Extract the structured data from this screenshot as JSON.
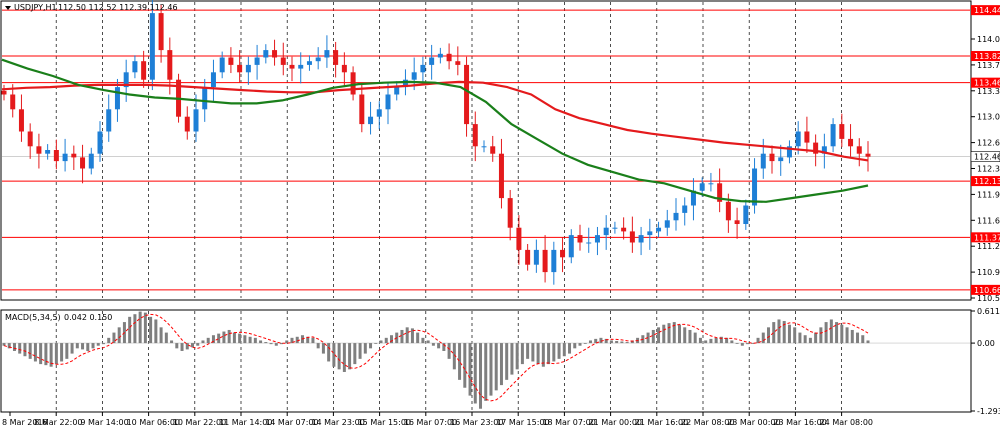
{
  "header": {
    "symbol_label": "USDJPY,H1",
    "ohlc_label": "112.50 112.52 112.39 112.46"
  },
  "macd_header": {
    "label": "MACD(5,34,5)",
    "values_label": "0.042 0.150"
  },
  "chart_data": [
    {
      "type": "candlestick",
      "title": "USDJPY,H1",
      "ylim": [
        110.55,
        114.55
      ],
      "price_ticks": [
        "114.05",
        "113.70",
        "113.35",
        "113.00",
        "112.65",
        "112.30",
        "111.95",
        "111.60",
        "111.25",
        "110.90",
        "110.55"
      ],
      "price_tick_values": [
        114.05,
        113.7,
        113.35,
        113.0,
        112.65,
        112.3,
        111.95,
        111.6,
        111.25,
        110.9,
        110.55
      ],
      "horizontal_levels": [
        114.44,
        113.82,
        113.46,
        112.13,
        111.37,
        110.66
      ],
      "horizontal_level_labels": [
        "114.44",
        "113.82",
        "113.46",
        "112.13",
        "111.37",
        "110.66"
      ],
      "current_price": 112.46,
      "current_price_label": "112.46",
      "x_labels": [
        "8 Mar 2016",
        "8 Mar 22:00",
        "9 Mar 14:00",
        "10 Mar 06:00",
        "10 Mar 22:00",
        "11 Mar 14:00",
        "14 Mar 07:00",
        "14 Mar 23:00",
        "15 Mar 15:00",
        "16 Mar 07:00",
        "16 Mar 23:00",
        "17 Mar 15:00",
        "18 Mar 07:00",
        "21 Mar 00:00",
        "21 Mar 16:00",
        "22 Mar 08:00",
        "23 Mar 00:00",
        "23 Mar 16:00",
        "24 Mar 08:00"
      ],
      "close_series": [
        113.3,
        113.1,
        112.8,
        112.6,
        112.5,
        112.55,
        112.4,
        112.5,
        112.45,
        112.3,
        112.5,
        112.8,
        113.1,
        113.4,
        113.6,
        113.75,
        113.5,
        114.4,
        113.9,
        113.5,
        113.0,
        112.8,
        113.1,
        113.4,
        113.6,
        113.8,
        113.7,
        113.6,
        113.7,
        113.8,
        113.9,
        113.8,
        113.7,
        113.65,
        113.7,
        113.75,
        113.8,
        113.9,
        113.7,
        113.6,
        113.3,
        112.9,
        113.0,
        113.1,
        113.3,
        113.4,
        113.5,
        113.6,
        113.7,
        113.8,
        113.85,
        113.75,
        113.7,
        112.9,
        112.6,
        112.6,
        112.5,
        111.9,
        111.5,
        111.2,
        111.0,
        111.2,
        110.9,
        111.2,
        111.1,
        111.4,
        111.3,
        111.3,
        111.4,
        111.5,
        111.5,
        111.45,
        111.3,
        111.4,
        111.45,
        111.5,
        111.6,
        111.7,
        111.8,
        112.0,
        112.1,
        112.1,
        111.85,
        111.6,
        111.55,
        111.8,
        112.3,
        112.5,
        112.4,
        112.45,
        112.6,
        112.8,
        112.65,
        112.5,
        112.6,
        112.9,
        112.7,
        112.6,
        112.5,
        112.46
      ],
      "ma_series": [
        {
          "name": "",
          "color": "#e41a1c",
          "values": [
            113.37,
            113.39,
            113.4,
            113.42,
            113.43,
            113.43,
            113.43,
            113.42,
            113.4,
            113.38,
            113.36,
            113.34,
            113.33,
            113.33,
            113.36,
            113.38,
            113.4,
            113.42,
            113.45,
            113.47,
            113.46,
            113.4,
            113.3,
            113.1,
            112.98,
            112.9,
            112.82,
            112.77,
            112.73,
            112.69,
            112.65,
            112.62,
            112.59,
            112.56,
            112.53,
            112.46,
            112.41
          ]
        },
        {
          "name": "",
          "color": "#1a7f1a",
          "values": [
            113.77,
            113.65,
            113.55,
            113.43,
            113.36,
            113.3,
            113.26,
            113.24,
            113.21,
            113.18,
            113.18,
            113.22,
            113.3,
            113.39,
            113.44,
            113.46,
            113.47,
            113.46,
            113.4,
            113.2,
            112.9,
            112.7,
            112.5,
            112.35,
            112.25,
            112.15,
            112.1,
            112.0,
            111.9,
            111.86,
            111.85,
            111.9,
            111.95,
            112.0,
            112.07
          ]
        }
      ]
    },
    {
      "type": "bar",
      "title": "MACD(5,34,5)",
      "ylim": [
        -1.293,
        0.611
      ],
      "tick_labels": [
        "0.611",
        "0.00",
        "-1.293"
      ],
      "tick_values": [
        0.611,
        0.0,
        -1.293
      ],
      "histogram": [
        -0.05,
        -0.1,
        -0.15,
        -0.2,
        -0.25,
        -0.3,
        -0.35,
        -0.4,
        -0.42,
        -0.45,
        -0.4,
        -0.35,
        -0.3,
        -0.2,
        -0.1,
        -0.12,
        -0.15,
        -0.1,
        -0.05,
        -0.02,
        0.1,
        0.2,
        0.3,
        0.4,
        0.5,
        0.55,
        0.6,
        0.58,
        0.5,
        0.45,
        0.3,
        0.2,
        0.05,
        -0.1,
        -0.15,
        -0.12,
        -0.08,
        -0.05,
        0.05,
        0.1,
        0.15,
        0.18,
        0.22,
        0.25,
        0.2,
        0.18,
        0.15,
        0.12,
        0.1,
        0.05,
        0.02,
        -0.02,
        -0.05,
        -0.02,
        0.05,
        0.1,
        0.12,
        0.15,
        0.12,
        0.1,
        -0.1,
        -0.2,
        -0.35,
        -0.45,
        -0.5,
        -0.55,
        -0.5,
        -0.4,
        -0.3,
        -0.2,
        -0.1,
        0.0,
        0.05,
        0.1,
        0.15,
        0.2,
        0.25,
        0.3,
        0.28,
        0.2,
        0.1,
        0.05,
        -0.05,
        -0.1,
        -0.15,
        -0.3,
        -0.5,
        -0.7,
        -0.85,
        -1.0,
        -1.15,
        -1.25,
        -1.1,
        -1.0,
        -0.9,
        -0.8,
        -0.7,
        -0.6,
        -0.5,
        -0.4,
        -0.3,
        -0.35,
        -0.4,
        -0.45,
        -0.4,
        -0.35,
        -0.3,
        -0.25,
        -0.2,
        -0.1,
        -0.05,
        0.0,
        0.05,
        0.08,
        0.1,
        0.08,
        0.05,
        0.04,
        0.03,
        0.02,
        0.05,
        0.1,
        0.15,
        0.2,
        0.25,
        0.3,
        0.35,
        0.38,
        0.4,
        0.35,
        0.3,
        0.25,
        0.2,
        0.1,
        0.05,
        0.08,
        0.1,
        0.12,
        0.1,
        0.05,
        0.0,
        -0.05,
        -0.02,
        0.0,
        0.1,
        0.2,
        0.3,
        0.4,
        0.45,
        0.42,
        0.35,
        0.3,
        0.2,
        0.15,
        0.1,
        0.2,
        0.3,
        0.4,
        0.45,
        0.4,
        0.35,
        0.3,
        0.25,
        0.2,
        0.15,
        0.05
      ],
      "signal_color": "#ff0000"
    }
  ],
  "colors": {
    "bull": "#1e7fd6",
    "bear": "#e41a1c",
    "level": "#ff0000",
    "grid": "#000000",
    "label_box": "#ff0000",
    "current_box": "#ffffff"
  }
}
